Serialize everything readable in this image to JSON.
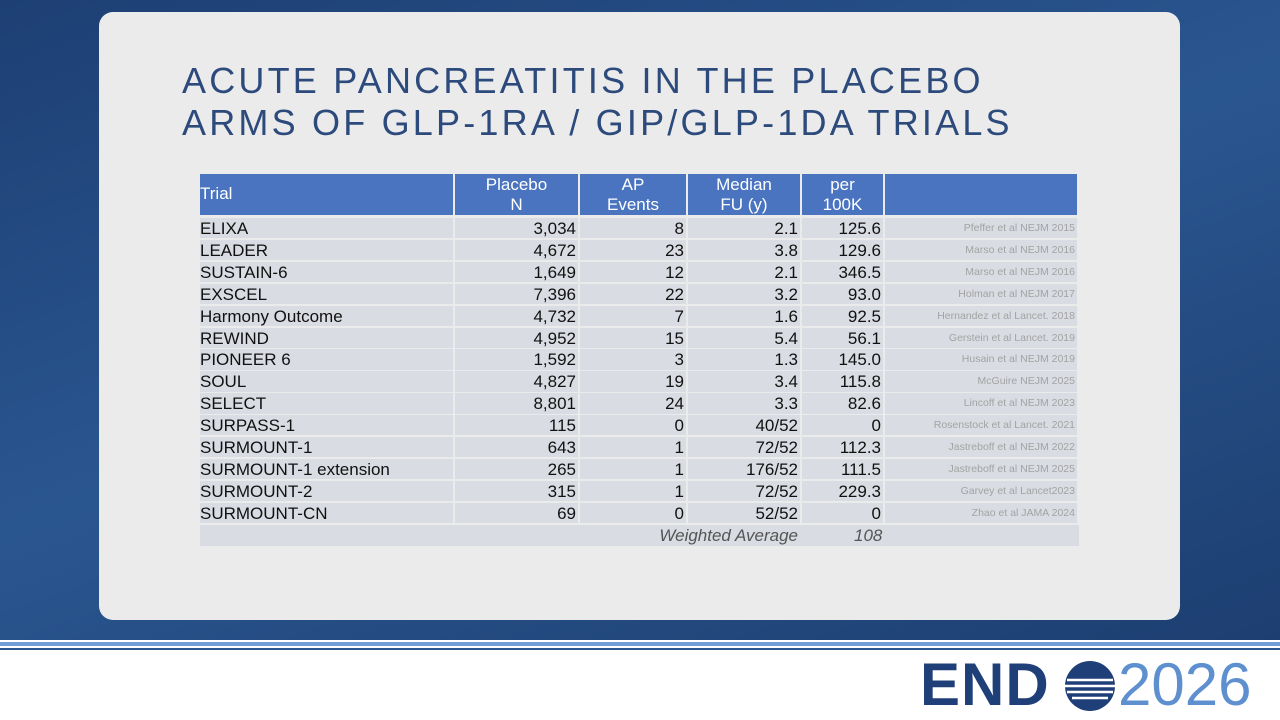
{
  "header": {
    "title": [
      "ACUTE PANCREATITIS IN THE PLACEBO",
      "ARMS OF GLP-1RA / GIP/GLP-1DA TRIALS"
    ]
  },
  "table": {
    "columns": [
      [
        "Trial"
      ],
      [
        "Placebo",
        "N"
      ],
      [
        "AP",
        "Events"
      ],
      [
        "Median",
        "FU (y)"
      ],
      [
        "per",
        "100K"
      ]
    ],
    "rows": [
      [
        "ELIXA",
        "3,034",
        "8",
        "2.1",
        "125.6",
        "Pfeffer et al NEJM 2015"
      ],
      [
        "LEADER",
        "4,672",
        "23",
        "3.8",
        "129.6",
        "Marso et al NEJM 2016"
      ],
      [
        "SUSTAIN-6",
        "1,649",
        "12",
        "2.1",
        "346.5",
        "Marso et al NEJM 2016"
      ],
      [
        "EXSCEL",
        "7,396",
        "22",
        "3.2",
        "93.0",
        "Holman et al NEJM 2017"
      ],
      [
        "Harmony Outcome",
        "4,732",
        "7",
        "1.6",
        "92.5",
        "Hernandez et al Lancet. 2018"
      ],
      [
        "REWIND",
        "4,952",
        "15",
        "5.4",
        "56.1",
        "Gerstein et al Lancet. 2019"
      ],
      [
        "PIONEER 6",
        "1,592",
        "3",
        "1.3",
        "145.0",
        "Husain et al NEJM 2019"
      ],
      [
        "SOUL",
        "4,827",
        "19",
        "3.4",
        "115.8",
        "McGuire NEJM 2025"
      ],
      [
        "SELECT",
        "8,801",
        "24",
        "3.3",
        "82.6",
        "Lincoff et al NEJM 2023"
      ],
      [
        "SURPASS-1",
        "115",
        "0",
        "40/52",
        "0",
        "Rosenstock et al Lancet. 2021"
      ],
      [
        "SURMOUNT-1",
        "643",
        "1",
        "72/52",
        "112.3",
        "Jastreboff et al NEJM 2022"
      ],
      [
        "SURMOUNT-1 extension",
        "265",
        "1",
        "176/52",
        "111.5",
        "Jastreboff et al NEJM 2025"
      ],
      [
        "SURMOUNT-2",
        "315",
        "1",
        "72/52",
        "229.3",
        "Garvey et al Lancet2023"
      ],
      [
        "SURMOUNT-CN",
        "69",
        "0",
        "52/52",
        "0",
        "Zhao et al JAMA 2024"
      ]
    ],
    "summary": {
      "label": "Weighted Average",
      "value": "108"
    }
  },
  "logo": {
    "brand": "END",
    "year": "2026"
  }
}
